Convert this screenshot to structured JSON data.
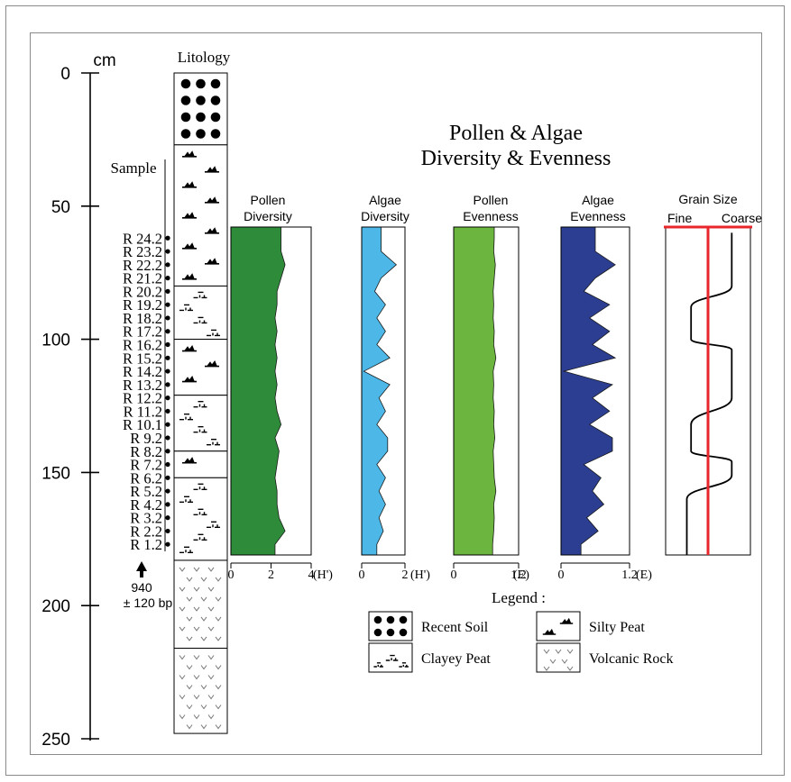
{
  "chart_data": {
    "type": "area",
    "title": "Pollen & Algae",
    "subtitle": "Diversity & Evenness",
    "depth_axis": {
      "unit": "cm",
      "range": [
        0,
        250
      ],
      "ticks": [
        0,
        50,
        100,
        150,
        200,
        250
      ]
    },
    "lithology": {
      "title": "Litology",
      "layers": [
        {
          "type": "recent-soil",
          "from": 0,
          "to": 27
        },
        {
          "type": "silty-peat",
          "from": 27,
          "to": 80
        },
        {
          "type": "clayey-peat",
          "from": 80,
          "to": 100
        },
        {
          "type": "silty-peat",
          "from": 100,
          "to": 121
        },
        {
          "type": "clayey-peat",
          "from": 121,
          "to": 142
        },
        {
          "type": "silty-peat",
          "from": 142,
          "to": 152
        },
        {
          "type": "clayey-peat",
          "from": 152,
          "to": 183
        },
        {
          "type": "volcanic-rock",
          "from": 183,
          "to": 216
        },
        {
          "type": "volcanic-rock",
          "from": 216,
          "to": 248
        }
      ]
    },
    "samples": {
      "title": "Sample",
      "labels": [
        "R 24.2",
        "R 23.2",
        "R 22.2",
        "R 21.2",
        "R 20.2",
        "R 19.2",
        "R 18.2",
        "R 17.2",
        "R 16.2",
        "R 15.2",
        "R 14.2",
        "R 13.2",
        "R 12.2",
        "R 11.2",
        "R 10.1",
        "R 9.2",
        "R 8.2",
        "R 7.2",
        "R 6.2",
        "R 5.2",
        "R 4.2",
        "R 3.2",
        "R 2.2",
        "R 1.2"
      ],
      "depths": [
        62,
        67,
        72,
        77,
        82,
        87,
        92,
        97,
        102,
        107,
        112,
        117,
        122,
        127,
        132,
        137,
        142,
        147,
        152,
        157,
        162,
        167,
        172,
        177
      ]
    },
    "dating": {
      "age": "940",
      "error": "± 120 bp",
      "depth": 187
    },
    "panels": [
      {
        "title_lines": [
          "Pollen",
          "Diversity"
        ],
        "unit": "(H')",
        "xlim": [
          0,
          4
        ],
        "ticks": [
          0,
          2,
          4
        ],
        "color": "#2e8b3a",
        "values": [
          2.5,
          2.5,
          2.7,
          2.5,
          2.3,
          2.3,
          2.2,
          2.3,
          2.2,
          2.3,
          2.2,
          2.3,
          2.2,
          2.3,
          2.5,
          2.2,
          2.4,
          2.3,
          2.2,
          2.3,
          2.3,
          2.4,
          2.7,
          2.2
        ]
      },
      {
        "title_lines": [
          "Algae",
          "Diversity"
        ],
        "unit": "(H')",
        "xlim": [
          0,
          2
        ],
        "ticks": [
          0,
          2
        ],
        "color": "#4db8e8",
        "values": [
          0.9,
          0.9,
          1.6,
          0.9,
          0.6,
          1.1,
          0.7,
          1.1,
          0.7,
          1.3,
          0.1,
          1.3,
          0.8,
          1.1,
          0.7,
          1.2,
          1.2,
          0.7,
          1.1,
          0.8,
          1.1,
          0.8,
          1.0,
          0.7
        ]
      },
      {
        "title_lines": [
          "Pollen",
          "Evenness"
        ],
        "unit": "(E)",
        "xlim": [
          0,
          1.2
        ],
        "ticks": [
          0,
          1.2
        ],
        "color": "#6cb63f",
        "values": [
          0.75,
          0.74,
          0.77,
          0.75,
          0.73,
          0.74,
          0.73,
          0.75,
          0.74,
          0.78,
          0.73,
          0.74,
          0.73,
          0.75,
          0.74,
          0.76,
          0.73,
          0.74,
          0.75,
          0.78,
          0.74,
          0.75,
          0.74,
          0.72
        ]
      },
      {
        "title_lines": [
          "Algae",
          "Evenness"
        ],
        "unit": "(E)",
        "xlim": [
          0,
          1.2
        ],
        "ticks": [
          0,
          1.2
        ],
        "color": "#2c3e91",
        "values": [
          0.6,
          0.6,
          0.95,
          0.6,
          0.4,
          0.85,
          0.5,
          0.85,
          0.55,
          0.95,
          0.05,
          0.9,
          0.55,
          0.85,
          0.5,
          0.9,
          0.9,
          0.4,
          0.7,
          0.55,
          0.75,
          0.45,
          0.65,
          0.35
        ]
      }
    ],
    "grain_size": {
      "title": "Grain Size",
      "left_label": "Fine",
      "right_label": "Coarse",
      "red_position": 0.5,
      "profile": [
        [
          60,
          0.78
        ],
        [
          80,
          0.78
        ],
        [
          88,
          0.3
        ],
        [
          100,
          0.3
        ],
        [
          104,
          0.78
        ],
        [
          122,
          0.78
        ],
        [
          132,
          0.3
        ],
        [
          142,
          0.3
        ],
        [
          146,
          0.78
        ],
        [
          151,
          0.78
        ],
        [
          160,
          0.25
        ],
        [
          185,
          0.25
        ]
      ]
    },
    "legend": {
      "title": "Legend :",
      "items": [
        {
          "symbol": "recent-soil",
          "label": "Recent Soil"
        },
        {
          "symbol": "silty-peat",
          "label": "Silty Peat"
        },
        {
          "symbol": "clayey-peat",
          "label": "Clayey Peat"
        },
        {
          "symbol": "volcanic-rock",
          "label": "Volcanic Rock"
        }
      ]
    }
  }
}
